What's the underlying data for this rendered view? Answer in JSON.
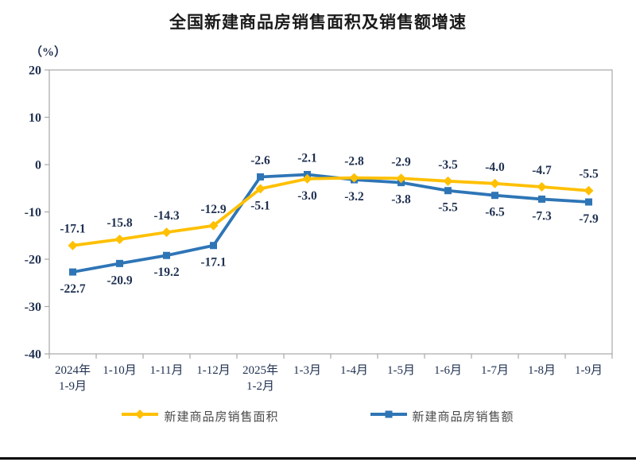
{
  "chart_data": {
    "type": "line",
    "title": "全国新建商品房销售面积及销售额增速",
    "unit_label": "（%）",
    "categories": [
      "2024年\n1-9月",
      "1-10月",
      "1-11月",
      "1-12月",
      "2025年\n1-2月",
      "1-3月",
      "1-4月",
      "1-5月",
      "1-6月",
      "1-7月",
      "1-8月",
      "1-9月"
    ],
    "series": [
      {
        "name": "新建商品房销售面积",
        "color": "#FFC000",
        "marker": "diamond",
        "values": [
          -17.1,
          -15.8,
          -14.3,
          -12.9,
          -5.1,
          -3.0,
          -2.8,
          -2.9,
          -3.5,
          -4.0,
          -4.7,
          -5.5
        ],
        "label_side": [
          "above",
          "above",
          "above",
          "above",
          "below",
          "below",
          "above",
          "above",
          "above",
          "above",
          "above",
          "above"
        ]
      },
      {
        "name": "新建商品房销售额",
        "color": "#2E75B6",
        "marker": "square",
        "values": [
          -22.7,
          -20.9,
          -19.2,
          -17.1,
          -2.6,
          -2.1,
          -3.2,
          -3.8,
          -5.5,
          -6.5,
          -7.3,
          -7.9
        ],
        "label_side": [
          "below",
          "below",
          "below",
          "below",
          "above",
          "above",
          "below",
          "below",
          "below",
          "below",
          "below",
          "below"
        ]
      }
    ],
    "y_ticks": [
      20,
      10,
      0,
      -10,
      -20,
      -30,
      -40
    ],
    "ylim": [
      -40,
      20
    ],
    "grid": false,
    "legend_position": "bottom",
    "axis_color": "#a8a8a8",
    "label_color": "#1f3050"
  }
}
